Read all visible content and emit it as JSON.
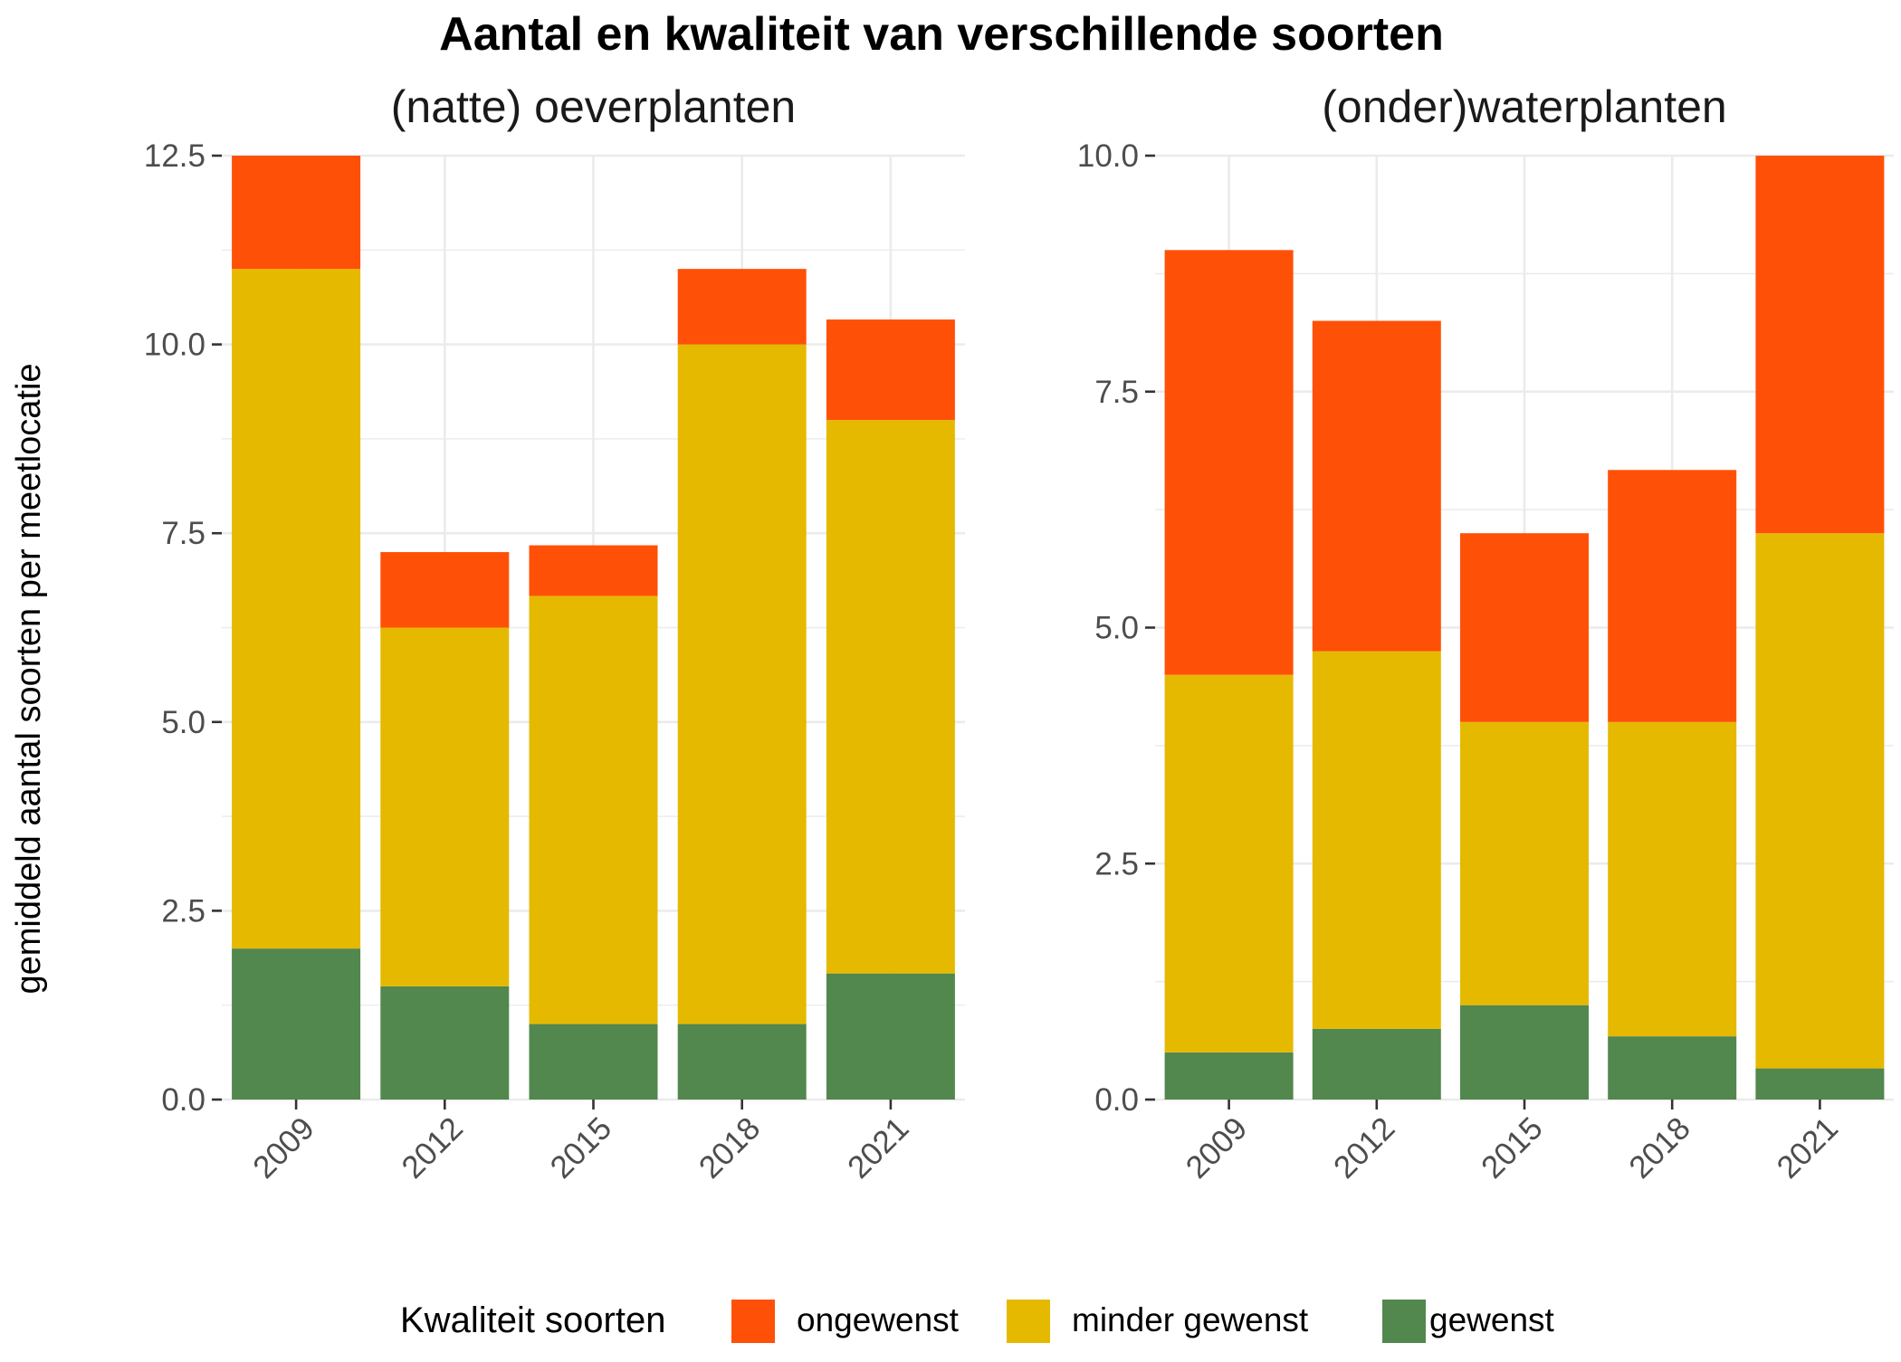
{
  "chart_title": "Aantal en kwaliteit van verschillende soorten",
  "y_axis_title": "gemiddeld aantal soorten per meetlocatie",
  "legend": {
    "title": "Kwaliteit soorten",
    "items": [
      {
        "key": "ongewenst",
        "label": "ongewenst",
        "color": "#FF5008"
      },
      {
        "key": "minder_gewenst",
        "label": "minder gewenst",
        "color": "#E5B900"
      },
      {
        "key": "gewenst",
        "label": "gewenst",
        "color": "#52874E"
      }
    ]
  },
  "chart_data": [
    {
      "type": "bar",
      "stacked": true,
      "title": "(natte) oeverplanten",
      "categories": [
        "2009",
        "2012",
        "2015",
        "2018",
        "2021"
      ],
      "ylim": [
        0,
        12.5
      ],
      "y_ticks": [
        "0.0",
        "2.5",
        "5.0",
        "7.5",
        "10.0",
        "12.5"
      ],
      "grid": true,
      "series": [
        {
          "name": "gewenst",
          "values": [
            2.0,
            1.5,
            1.0,
            1.0,
            1.67
          ]
        },
        {
          "name": "minder gewenst",
          "values": [
            9.0,
            4.75,
            5.67,
            9.0,
            7.33
          ]
        },
        {
          "name": "ongewenst",
          "values": [
            1.5,
            1.0,
            0.67,
            1.0,
            1.33
          ]
        }
      ]
    },
    {
      "type": "bar",
      "stacked": true,
      "title": "(onder)waterplanten",
      "categories": [
        "2009",
        "2012",
        "2015",
        "2018",
        "2021"
      ],
      "ylim": [
        0,
        10
      ],
      "y_ticks": [
        "0.0",
        "2.5",
        "5.0",
        "7.5",
        "10.0"
      ],
      "grid": true,
      "series": [
        {
          "name": "gewenst",
          "values": [
            0.5,
            0.75,
            1.0,
            0.67,
            0.33
          ]
        },
        {
          "name": "minder gewenst",
          "values": [
            4.0,
            4.0,
            3.0,
            3.33,
            5.67
          ]
        },
        {
          "name": "ongewenst",
          "values": [
            4.5,
            3.5,
            2.0,
            2.67,
            4.0
          ]
        }
      ]
    }
  ]
}
